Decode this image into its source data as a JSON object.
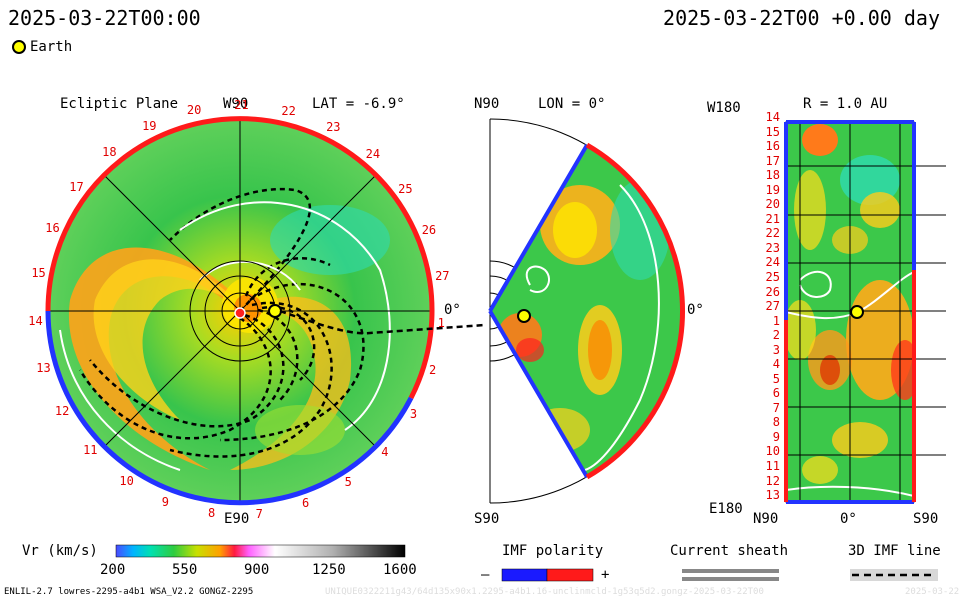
{
  "header": {
    "time_left": "2025-03-22T00:00",
    "time_right": "2025-03-22T00 +0.00 day"
  },
  "legend": {
    "earth_label": "Earth"
  },
  "ecliptic": {
    "title": "Ecliptic Plane",
    "top_label": "W90",
    "lat_label": "LAT = -6.9°",
    "right_label": "0°",
    "bottom_label": "E90",
    "ring_numbers": [
      "20",
      "21",
      "22",
      "23",
      "24",
      "25",
      "26",
      "27",
      "1",
      "2",
      "3",
      "4",
      "5",
      "6",
      "7",
      "8",
      "9",
      "10",
      "11",
      "12",
      "13",
      "14",
      "15",
      "16",
      "17",
      "18",
      "19"
    ]
  },
  "meridional": {
    "top_label": "N90",
    "lon_label": "LON = 0°",
    "right_label": "0°",
    "bottom_label": "S90"
  },
  "shell": {
    "top_left": "W180",
    "title": "R = 1.0 AU",
    "bottom_left": "E180",
    "bottom_n": "N90",
    "bottom_mid": "0°",
    "bottom_s": "S90",
    "rows": [
      "14",
      "15",
      "16",
      "17",
      "18",
      "19",
      "20",
      "21",
      "22",
      "23",
      "24",
      "25",
      "26",
      "27",
      "1",
      "2",
      "3",
      "4",
      "5",
      "6",
      "7",
      "8",
      "9",
      "10",
      "11",
      "12",
      "13"
    ]
  },
  "colorbar": {
    "label": "Vr (km/s)",
    "ticks": [
      "200",
      "550",
      "900",
      "1250",
      "1600"
    ]
  },
  "imf": {
    "title": "IMF polarity",
    "minus": "–",
    "plus": "+"
  },
  "sheath": {
    "title": "Current sheath"
  },
  "imf3d": {
    "title": "3D IMF line"
  },
  "footer": {
    "model": "ENLIL-2.7 lowres-2295-a4b1 WSA_V2.2 GONGZ-2295",
    "run_id": "UNIQUE0322211g43/64d135x90x1.2295-a4b1.16-unclinmcld-1g53q5d2.gongz-2025-03-22T00",
    "stamp": "2025-03-22"
  },
  "colors": {
    "ring_red": "#ff1a1a",
    "ring_blue": "#2233ff",
    "field_green": "#3cc84a",
    "earth": "#ffff00"
  }
}
